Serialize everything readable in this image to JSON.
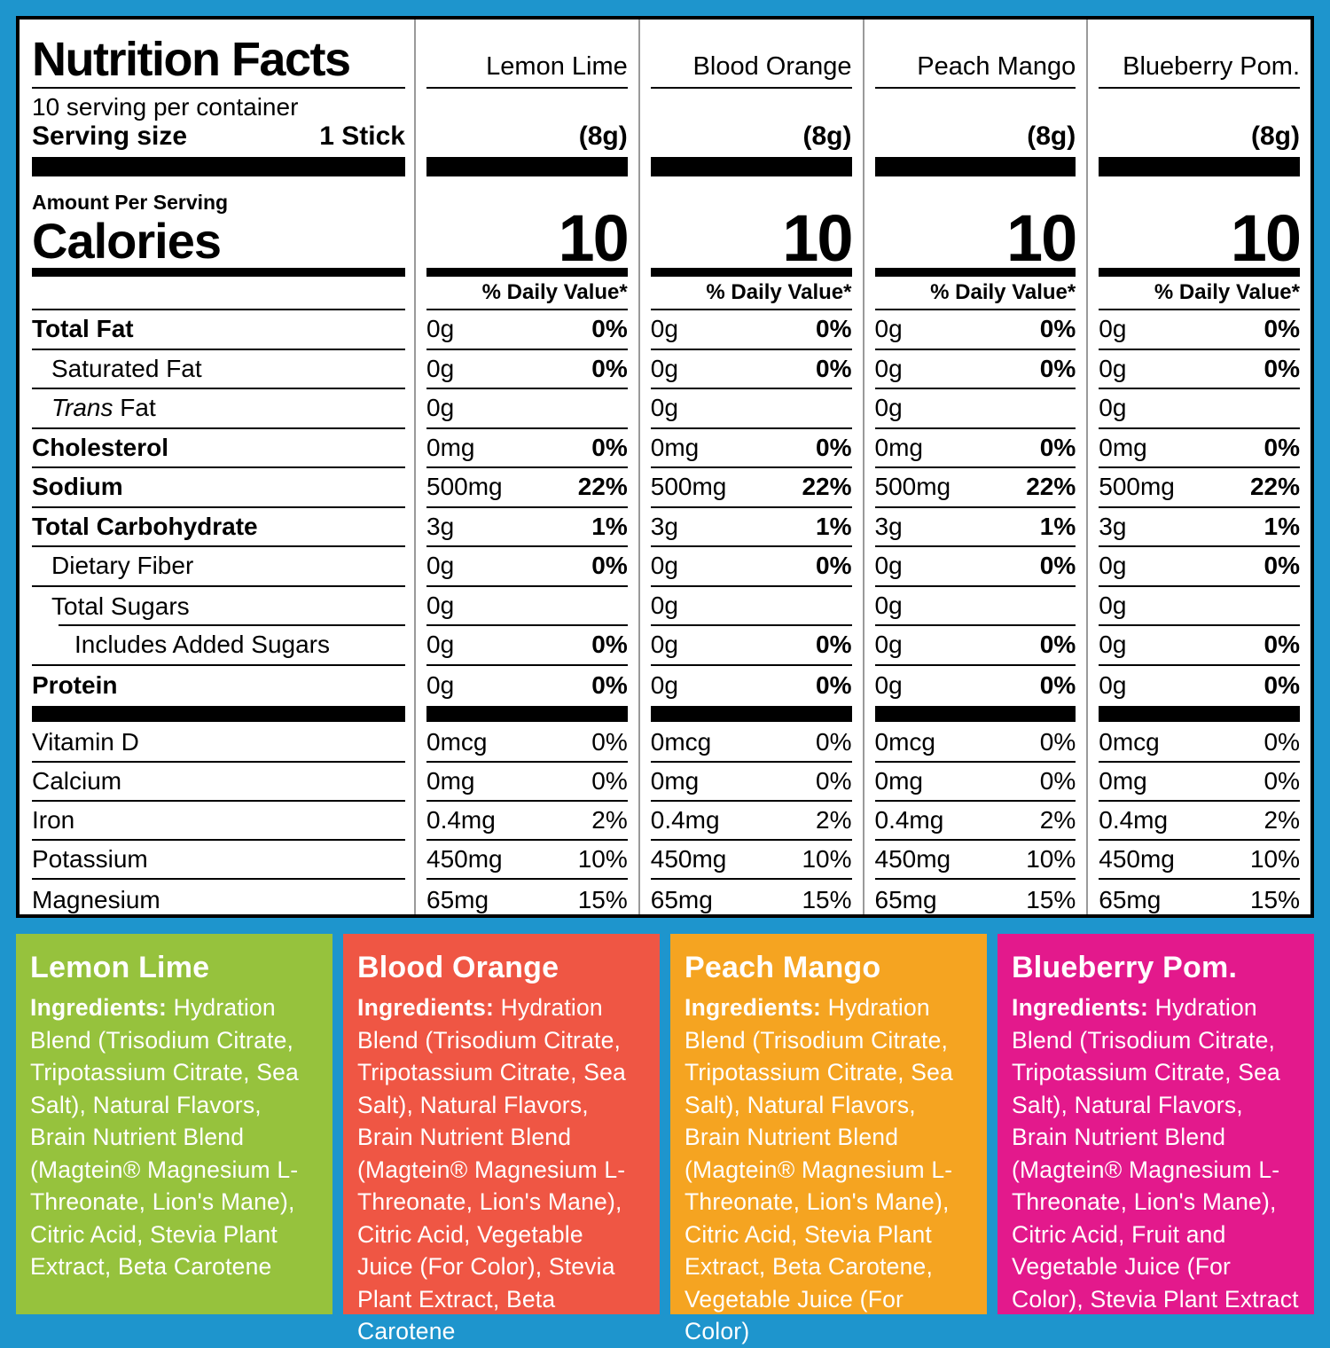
{
  "background_color": "#1E95CD",
  "nutrition_panel": {
    "title": "Nutrition Facts",
    "servings_line": "10 serving per container",
    "serving_size_label": "Serving size",
    "serving_size_value": "1 Stick",
    "serving_grams": "(8g)",
    "amount_per_serving": "Amount Per Serving",
    "calories_label": "Calories",
    "calories_value": "10",
    "daily_value_header": "% Daily Value*",
    "divider_color": "#9a9a9a",
    "flavors": [
      "Lemon Lime",
      "Blood Orange",
      "Peach Mango",
      "Blueberry Pom."
    ],
    "rows": [
      {
        "label": "Total Fat",
        "bold": true,
        "indent": 0,
        "amount": "0g",
        "dv": "0%",
        "dvBold": true
      },
      {
        "label": "Saturated Fat",
        "bold": false,
        "indent": 1,
        "amount": "0g",
        "dv": "0%",
        "dvBold": true
      },
      {
        "label": "Trans Fat",
        "italicPrefix": "Trans",
        "bold": false,
        "indent": 1,
        "amount": "0g",
        "dv": "",
        "dvBold": false
      },
      {
        "label": "Cholesterol",
        "bold": true,
        "indent": 0,
        "amount": "0mg",
        "dv": "0%",
        "dvBold": true
      },
      {
        "label": "Sodium",
        "bold": true,
        "indent": 0,
        "amount": "500mg",
        "dv": "22%",
        "dvBold": true
      },
      {
        "label": "Total Carbohydrate",
        "bold": true,
        "indent": 0,
        "amount": "3g",
        "dv": "1%",
        "dvBold": true
      },
      {
        "label": "Dietary Fiber",
        "bold": false,
        "indent": 1,
        "amount": "0g",
        "dv": "0%",
        "dvBold": true
      },
      {
        "label": "Total Sugars",
        "bold": false,
        "indent": 1,
        "amount": "0g",
        "dv": "",
        "dvBold": false,
        "indentLine": true
      },
      {
        "label": "Includes Added Sugars",
        "bold": false,
        "indent": 2,
        "amount": "0g",
        "dv": "0%",
        "dvBold": true
      },
      {
        "label": "Protein",
        "bold": true,
        "indent": 0,
        "amount": "0g",
        "dv": "0%",
        "dvBold": true,
        "noBorder": true
      }
    ],
    "micronutrients": [
      {
        "label": "Vitamin D",
        "amount": "0mcg",
        "dv": "0%"
      },
      {
        "label": "Calcium",
        "amount": "0mg",
        "dv": "0%"
      },
      {
        "label": "Iron",
        "amount": "0.4mg",
        "dv": "2%"
      },
      {
        "label": "Potassium",
        "amount": "450mg",
        "dv": "10%"
      },
      {
        "label": "Magnesium",
        "amount": "65mg",
        "dv": "15%"
      }
    ]
  },
  "ingredient_panels": [
    {
      "name": "Lemon Lime",
      "color": "#96C23D",
      "ingredients_label": "Ingredients:",
      "ingredients": "Hydration Blend (Trisodium Citrate, Tripotassium Citrate, Sea Salt), Natural Flavors, Brain Nutrient Blend (Magtein® Magnesium L-Threonate, Lion's Mane), Citric Acid, Stevia Plant Extract, Beta Carotene"
    },
    {
      "name": "Blood Orange",
      "color": "#EF5644",
      "ingredients_label": "Ingredients:",
      "ingredients": "Hydration Blend (Trisodium Citrate, Tripotassium Citrate, Sea Salt), Natural Flavors, Brain Nutrient Blend (Magtein® Magnesium L-Threonate, Lion's Mane), Citric Acid, Vegetable Juice (For Color), Stevia Plant Extract, Beta Carotene"
    },
    {
      "name": "Peach Mango",
      "color": "#F5A421",
      "ingredients_label": "Ingredients:",
      "ingredients": "Hydration Blend (Trisodium Citrate, Tripotassium Citrate, Sea Salt), Natural Flavors, Brain Nutrient Blend (Magtein® Magnesium L-Threonate, Lion's Mane), Citric Acid, Stevia Plant Extract, Beta Carotene, Vegetable Juice (For Color)"
    },
    {
      "name": "Blueberry Pom.",
      "color": "#E3198C",
      "ingredients_label": "Ingredients:",
      "ingredients": "Hydration Blend (Trisodium Citrate, Tripotassium Citrate, Sea Salt), Natural Flavors, Brain Nutrient Blend (Magtein® Magnesium L-Threonate, Lion's Mane), Citric Acid, Fruit and Vegetable Juice (For Color), Stevia Plant Extract"
    }
  ]
}
